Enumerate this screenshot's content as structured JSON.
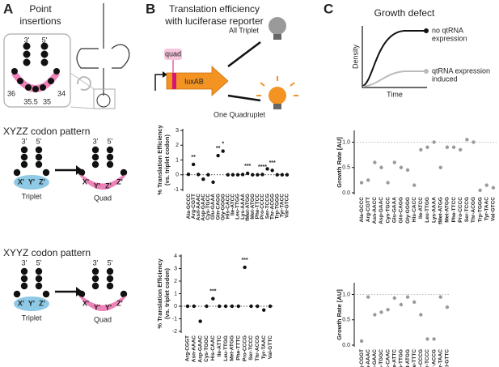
{
  "panel_a": {
    "label": "A",
    "title_lines": [
      "Point",
      "insertions"
    ],
    "ends": [
      "3'",
      "5'"
    ],
    "positions": [
      "36",
      "35.5",
      "35",
      "34"
    ],
    "patterns": [
      {
        "title": "XYZZ codon pattern",
        "triplet": "Triplet",
        "quad": "Quad",
        "triplet_letters": [
          "X'",
          "Y'",
          "Z'"
        ],
        "quad_letters": [
          "X'",
          "Y'",
          "Z'",
          "Z'"
        ]
      },
      {
        "title": "XYYZ codon pattern",
        "triplet": "Triplet",
        "quad": "Quad",
        "triplet_letters": [
          "X'",
          "Y'",
          "Z'"
        ],
        "quad_letters": [
          "X'",
          "Y'",
          "Y'",
          "Z'"
        ]
      }
    ]
  },
  "panel_b": {
    "label": "B",
    "title_lines": [
      "Translation efficiency",
      "with luciferase reporter"
    ],
    "quad": "quad",
    "gene": "luxAB",
    "outcomes": [
      "All Triplet",
      "One Quadruplet"
    ]
  },
  "panel_c": {
    "label": "C",
    "title": "Growth defect",
    "y_label": "Density",
    "x_label": "Time",
    "legend": [
      [
        "no qtRNA",
        "expression"
      ],
      [
        "qtRNA expression",
        "induced"
      ]
    ]
  },
  "chart_data": [
    {
      "type": "dot",
      "y_label": "% Translation Efficiency",
      "y_sublabel": "(vs. triplet codon)",
      "categories": [
        "Ala-GCCC",
        "Arg-CGTT",
        "Asn-AAAC",
        "Asp-GAAC",
        "Cys-TGCC",
        "Glu-GAAA",
        "Gln-CAGG",
        "Gly-GGGG",
        "His-CACC",
        "Ile-ATCC",
        "Leu-TTGG",
        "Lys-AAAA",
        "fMet-ATGG",
        "Met-ATGG",
        "Phe-TTCC",
        "Pro-CCCC",
        "Ser-TCCG",
        "Thr-ACGG",
        "Trp-TGGG",
        "Tyr-TACC",
        "Val-GTCC"
      ],
      "values": [
        0.03,
        0.7,
        0.02,
        -0.3,
        0,
        -0.5,
        1.3,
        1.6,
        0,
        0,
        0,
        0.02,
        0.1,
        0,
        0,
        0.02,
        0.4,
        0.3,
        0,
        0,
        0
      ],
      "color": "#111111",
      "ylim": [
        -1,
        3
      ],
      "yticks": [
        -1,
        0,
        1,
        2,
        3
      ],
      "ref_line": 0,
      "annotations": [
        {
          "text": "**",
          "category": "Arg-CGTT"
        },
        {
          "text": "**",
          "category": "Gln-CAGG"
        },
        {
          "text": "*",
          "category": "Gly-GGGG"
        },
        {
          "text": "***",
          "category": "fMet-ATGG"
        },
        {
          "text": "****",
          "category": "Pro-CCCC"
        },
        {
          "text": "***",
          "category": "Thr-ACGG"
        }
      ]
    },
    {
      "type": "dot",
      "y_label": "% Translation Efficiency",
      "y_sublabel": "(vs. triplet codon)",
      "categories": [
        "Arg-CGGT",
        "Asn-AAAC",
        "Asp-GAAC",
        "Cys-TGGC",
        "His-CAAC",
        "Ile-ATTC",
        "Leu-TTGG",
        "Met-ATGG",
        "Phe-TTTC",
        "Pro-CCCG",
        "Ser-TCCC",
        "Thr-ACCG",
        "Tyr-TAAC",
        "Val-GTTC"
      ],
      "values": [
        0,
        0,
        -1.2,
        0,
        0.6,
        0,
        0,
        0,
        0,
        3.1,
        0,
        0,
        -0.3,
        0
      ],
      "color": "#111111",
      "ylim": [
        -2,
        4
      ],
      "yticks": [
        -2,
        -1,
        0,
        1,
        2,
        3,
        4
      ],
      "ref_line": 0,
      "annotations": [
        {
          "text": "***",
          "category": "His-CAAC"
        },
        {
          "text": "***",
          "category": "Pro-CCCG"
        }
      ]
    },
    {
      "type": "dot",
      "y_label": "Growth Rate [AU]",
      "categories": [
        "Ala-GCCC",
        "Arg-CGTT",
        "Asn-AACC",
        "Asp-GAAC",
        "Cys-TGCC",
        "Glu-GAAA",
        "Gln-CAGG",
        "Gly-GGGG",
        "His-CACC",
        "Ile-ATCC",
        "Leu-TTGG",
        "Lys-AAAA",
        "fMet-ATGG",
        "Met-ATGG",
        "Phe-TTCC",
        "Pro-CCCC",
        "Ser-TCCG",
        "Thr-ACGG",
        "Trp-TGGG",
        "Tyr-TAAC",
        "Val-GTCC"
      ],
      "values": [
        0.2,
        0.25,
        0.6,
        0.5,
        0.2,
        0.6,
        0.5,
        0.45,
        0.15,
        0.85,
        0.9,
        1.0,
        0.5,
        0.9,
        0.9,
        0.85,
        1.05,
        1.0,
        0.05,
        0.15,
        0.1
      ],
      "color": "#9a9a9a",
      "ylim": [
        0,
        1.2
      ],
      "yticks": [
        {
          "value": 0,
          "label": "0.0"
        },
        0.5,
        {
          "value": 1,
          "label": "1.0"
        }
      ],
      "ref_line": 1
    },
    {
      "type": "dot",
      "y_label": "Growth Rate [AU]",
      "categories": [
        "Arg-CGGT",
        "Asn-AAAC",
        "Asp-GAAC",
        "Cys-TGGC",
        "His-CAAC",
        "Ile-ATTC",
        "Leu-TTGG",
        "Met-ATGG",
        "Phe-TTTC",
        "Pro-CCCG",
        "Ser-TCCC",
        "Thr-ACCG",
        "Tyr-TAAC",
        "Val-GTTC"
      ],
      "values": [
        0.08,
        0.95,
        0.6,
        0.65,
        0.7,
        0.93,
        0.8,
        0.95,
        0.85,
        0.6,
        0.12,
        0.12,
        0.95,
        0.75
      ],
      "color": "#9a9a9a",
      "ylim": [
        0,
        1.2
      ],
      "yticks": [
        {
          "value": 0,
          "label": "0.0"
        },
        0.5,
        {
          "value": 1,
          "label": "1.0"
        }
      ],
      "ref_line": 1
    }
  ]
}
